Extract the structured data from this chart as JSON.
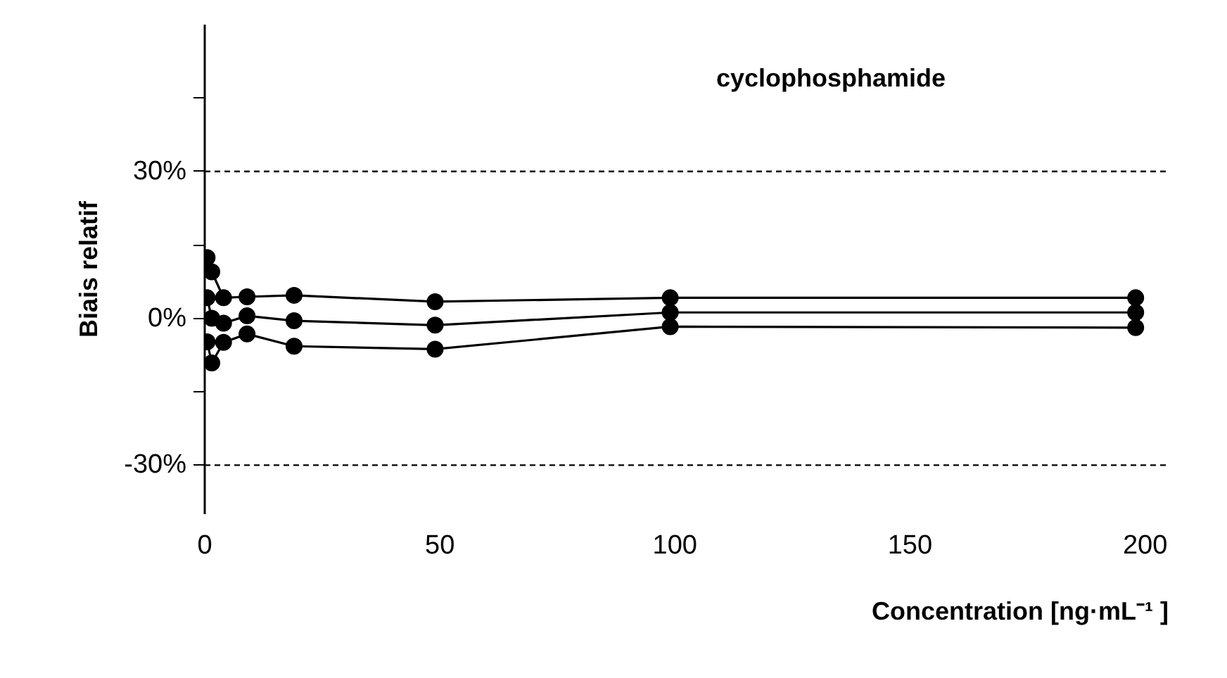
{
  "chart_data": {
    "type": "line",
    "title": "cyclophosphamide",
    "xlabel": "Concentration [ng·mL⁻¹ ]",
    "ylabel": "Biais relatif",
    "series": [
      {
        "color": "#000000",
        "x": [
          0.5,
          1.5,
          4,
          9,
          19,
          49,
          99,
          198
        ],
        "values": [
          12.4,
          9.5,
          4.2,
          4.4,
          4.7,
          3.4,
          4.2,
          4.2
        ]
      },
      {
        "color": "#000000",
        "x": [
          0.5,
          1.5,
          4,
          9,
          19,
          49,
          99,
          198
        ],
        "values": [
          4.2,
          0,
          -1.0,
          0.5,
          -0.5,
          -1.4,
          1.2,
          1.2
        ]
      },
      {
        "color": "#000000",
        "x": [
          0.5,
          1.5,
          4,
          9,
          19,
          49,
          99,
          198
        ],
        "values": [
          -4.8,
          -9.1,
          -4.9,
          -3.2,
          -5.7,
          -6.3,
          -1.7,
          -1.9
        ]
      }
    ],
    "marker": "circle",
    "line_style": "solid",
    "grid": false,
    "xlim": [
      0,
      205
    ],
    "ylim": [
      -40,
      60
    ],
    "xticks": [
      0,
      50,
      100,
      150,
      200
    ],
    "yticks": [
      {
        "value": -30,
        "label": "-30%"
      },
      {
        "value": -15,
        "label": null
      },
      {
        "value": 0,
        "label": "0%"
      },
      {
        "value": 15,
        "label": null
      },
      {
        "value": 30,
        "label": "30%"
      },
      {
        "value": 45,
        "label": null
      }
    ],
    "ref_lines": [
      {
        "axis": "y",
        "value": 30,
        "label": null,
        "line_style": "dashed",
        "color": "#000000"
      },
      {
        "axis": "y",
        "value": -30,
        "label": null,
        "line_style": "dashed",
        "color": "#000000"
      }
    ]
  }
}
